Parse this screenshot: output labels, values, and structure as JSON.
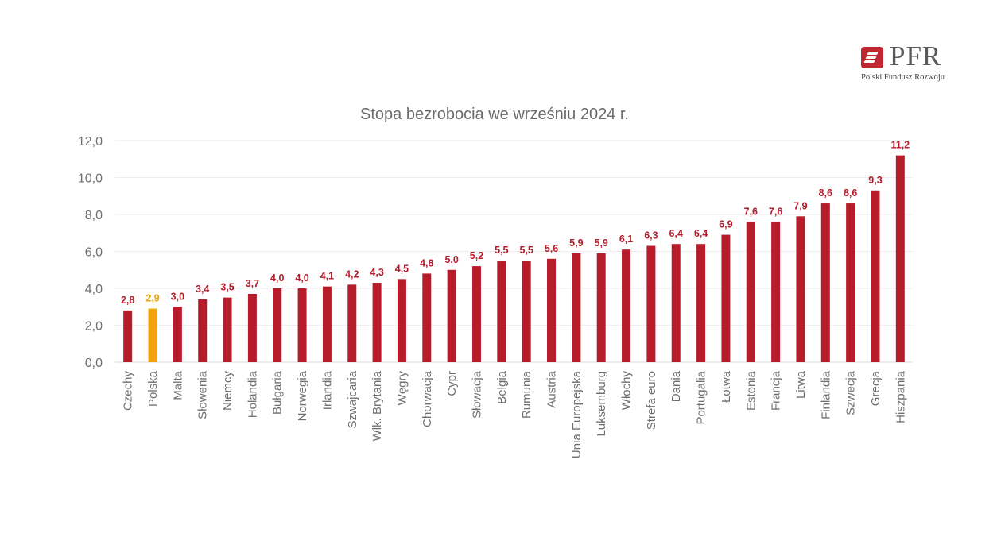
{
  "brand": {
    "name": "PFR",
    "subtitle": "Polski Fundusz Rozwoju",
    "color": "#c0262f"
  },
  "chart_data": {
    "type": "bar",
    "title": "Stopa bezrobocia we wrześniu 2024 r.",
    "xlabel": "",
    "ylabel": "",
    "ylim": [
      0,
      12
    ],
    "yticks": [
      0,
      2,
      4,
      6,
      8,
      10,
      12
    ],
    "ytick_labels": [
      "0,0",
      "2,0",
      "4,0",
      "6,0",
      "8,0",
      "10,0",
      "12,0"
    ],
    "grid": true,
    "legend": "none",
    "bar_color": "#b71c2b",
    "highlight_color": "#f0a30a",
    "highlight_category": "Polska",
    "categories": [
      "Czechy",
      "Polska",
      "Malta",
      "Słowenia",
      "Niemcy",
      "Holandia",
      "Bułgaria",
      "Norwegia",
      "Irlandia",
      "Szwajcaria",
      "Wlk. Brytania",
      "Węgry",
      "Chorwacja",
      "Cypr",
      "Słowacja",
      "Belgia",
      "Rumunia",
      "Austria",
      "Unia Europejska",
      "Luksemburg",
      "Włochy",
      "Strefa euro",
      "Dania",
      "Portugalia",
      "Łotwa",
      "Estonia",
      "Francja",
      "Litwa",
      "Finlandia",
      "Szwecja",
      "Grecja",
      "Hiszpania"
    ],
    "values": [
      2.8,
      2.9,
      3.0,
      3.4,
      3.5,
      3.7,
      4.0,
      4.0,
      4.1,
      4.2,
      4.3,
      4.5,
      4.8,
      5.0,
      5.2,
      5.5,
      5.5,
      5.6,
      5.9,
      5.9,
      6.1,
      6.3,
      6.4,
      6.4,
      6.9,
      7.6,
      7.6,
      7.9,
      8.6,
      8.6,
      9.3,
      11.2
    ],
    "data_labels": [
      "2,8",
      "2,9",
      "3,0",
      "3,4",
      "3,5",
      "3,7",
      "4,0",
      "4,0",
      "4,1",
      "4,2",
      "4,3",
      "4,5",
      "4,8",
      "5,0",
      "5,2",
      "5,5",
      "5,5",
      "5,6",
      "5,9",
      "5,9",
      "6,1",
      "6,3",
      "6,4",
      "6,4",
      "6,9",
      "7,6",
      "7,6",
      "7,9",
      "8,6",
      "8,6",
      "9,3",
      "11,2"
    ]
  }
}
